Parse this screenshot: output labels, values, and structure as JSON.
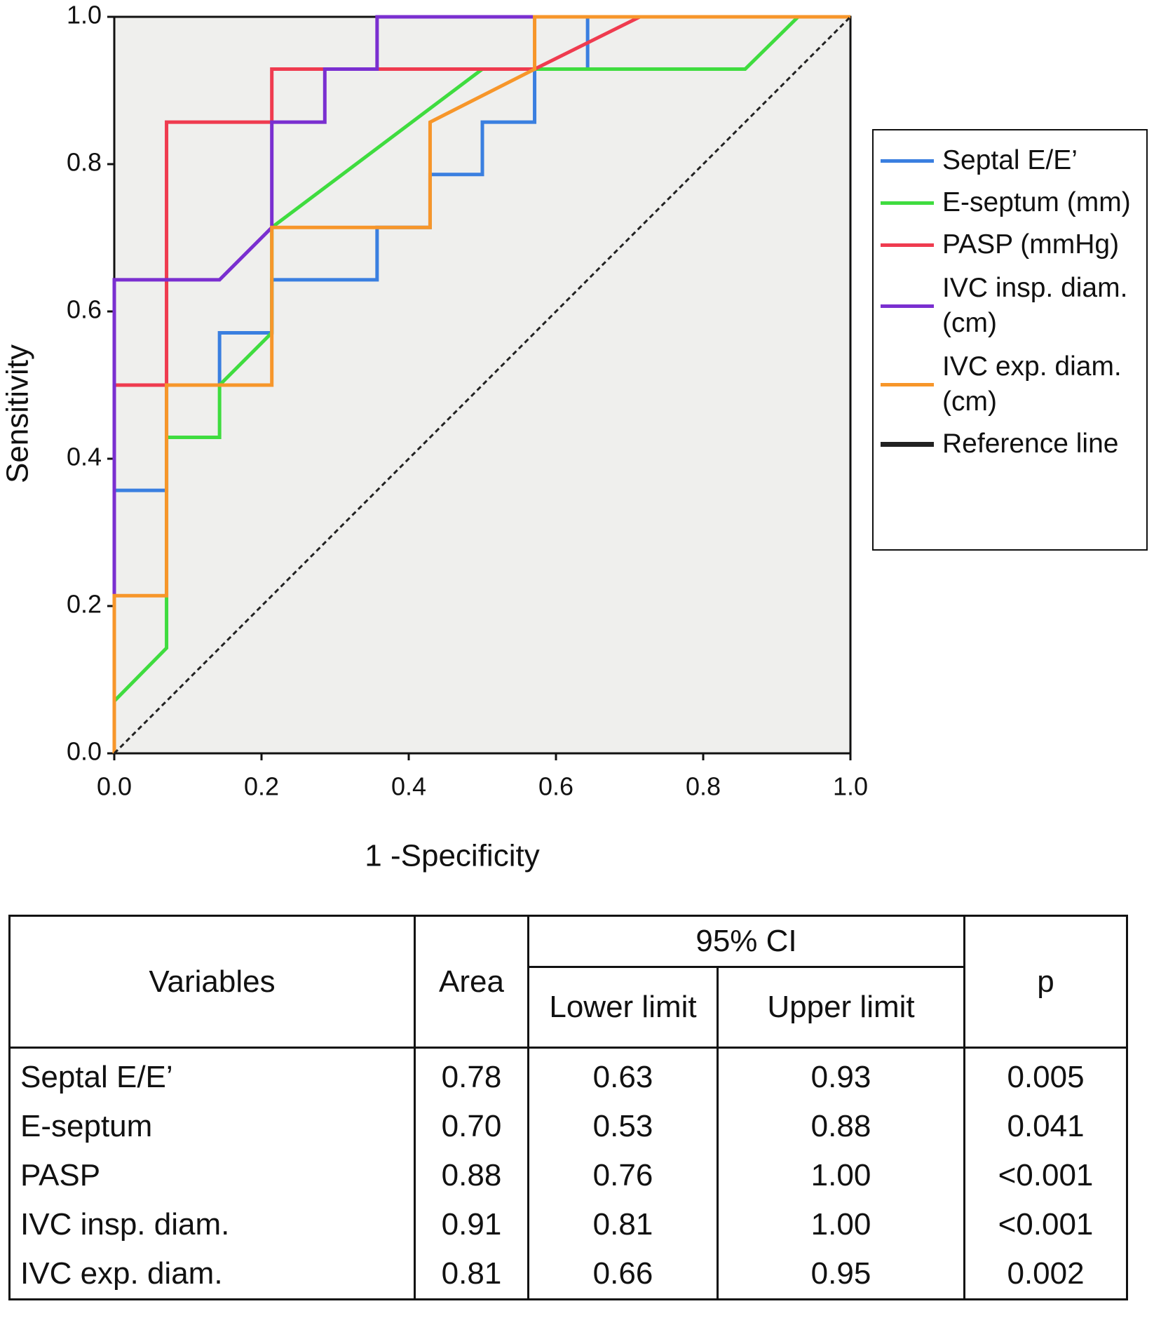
{
  "chart_data": {
    "type": "line",
    "x_label": "1 -Specificity",
    "y_label": "Sensitivity",
    "xlim": [
      0,
      1
    ],
    "ylim": [
      0,
      1
    ],
    "xticks": [
      {
        "value": 0,
        "label": "0.0"
      },
      0.2,
      0.4,
      0.6,
      0.8,
      {
        "value": 1,
        "label": "1.0"
      }
    ],
    "yticks": [
      {
        "value": 0,
        "label": "0.0"
      },
      0.2,
      0.4,
      0.6,
      0.8,
      {
        "value": 1,
        "label": "1.0"
      }
    ],
    "grid": false,
    "legend": "right",
    "series": [
      {
        "name": "Septal E/E’",
        "color": "#3a7fe0",
        "linestyle": "solid",
        "x": [
          0,
          0,
          0.071,
          0.071,
          0.143,
          0.143,
          0.214,
          0.214,
          0.357,
          0.357,
          0.429,
          0.429,
          0.5,
          0.5,
          0.571,
          0.571,
          0.643,
          0.643,
          1
        ],
        "values": [
          0,
          0.357,
          0.357,
          0.5,
          0.5,
          0.571,
          0.571,
          0.643,
          0.643,
          0.714,
          0.714,
          0.786,
          0.786,
          0.857,
          0.857,
          0.929,
          0.929,
          1,
          1
        ]
      },
      {
        "name": "E-septum (mm)",
        "color": "#3fdc3f",
        "linestyle": "solid",
        "x": [
          0,
          0.071,
          0.071,
          0.143,
          0.143,
          0.214,
          0.214,
          0.5,
          0.857,
          0.929,
          1
        ],
        "values": [
          0.071,
          0.143,
          0.429,
          0.429,
          0.5,
          0.571,
          0.714,
          0.929,
          0.929,
          1,
          1
        ]
      },
      {
        "name": "PASP (mmHg)",
        "color": "#ef3b4f",
        "linestyle": "solid",
        "x": [
          0,
          0,
          0.071,
          0.071,
          0.214,
          0.214,
          0.571,
          0.714,
          1
        ],
        "values": [
          0,
          0.5,
          0.5,
          0.857,
          0.857,
          0.929,
          0.929,
          1,
          1
        ]
      },
      {
        "name": "IVC insp. diam. (cm)",
        "color": "#7a2fd0",
        "linestyle": "solid",
        "x": [
          0,
          0,
          0.143,
          0.214,
          0.214,
          0.286,
          0.286,
          0.357,
          0.357,
          1
        ],
        "values": [
          0,
          0.643,
          0.643,
          0.714,
          0.857,
          0.857,
          0.929,
          0.929,
          1,
          1
        ]
      },
      {
        "name": "IVC exp. diam. (cm)",
        "color": "#f7962a",
        "linestyle": "solid",
        "x": [
          0,
          0,
          0.071,
          0.071,
          0.214,
          0.214,
          0.429,
          0.429,
          0.571,
          0.571,
          1
        ],
        "values": [
          0,
          0.214,
          0.214,
          0.5,
          0.5,
          0.714,
          0.714,
          0.857,
          0.929,
          1,
          1
        ]
      },
      {
        "name": "Reference line",
        "color": "#222222",
        "linestyle": "dashed",
        "x": [
          0,
          1
        ],
        "values": [
          0,
          1
        ]
      }
    ]
  },
  "table": {
    "header": {
      "variables": "Variables",
      "area": "Area",
      "ci": "95% CI",
      "lower": "Lower limit",
      "upper": "Upper limit",
      "p": "p"
    },
    "rows": [
      [
        "Septal E/E’",
        "0.78",
        "0.63",
        "0.93",
        "0.005"
      ],
      [
        "E-septum",
        "0.70",
        "0.53",
        "0.88",
        "0.041"
      ],
      [
        "PASP",
        "0.88",
        "0.76",
        "1.00",
        "<0.001"
      ],
      [
        "IVC insp. diam.",
        "0.91",
        "0.81",
        "1.00",
        "<0.001"
      ],
      [
        "IVC exp. diam.",
        "0.81",
        "0.66",
        "0.95",
        "0.002"
      ]
    ]
  }
}
